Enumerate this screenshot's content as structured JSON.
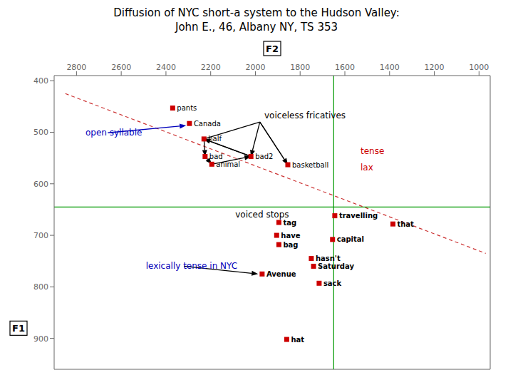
{
  "chart_data": {
    "type": "scatter",
    "title": "Diffusion of NYC short-a system to the Hudson Valley:\nJohn E., 46, Albany NY, TS 353",
    "x_label": "F2",
    "y_label": "F1",
    "xlim": [
      2900,
      950
    ],
    "ylim": [
      960,
      390
    ],
    "xticks": [
      2800,
      2600,
      2400,
      2200,
      2000,
      1800,
      1600,
      1400,
      1200,
      1000
    ],
    "yticks": [
      400,
      500,
      600,
      700,
      800,
      900
    ],
    "color": "#cc0000",
    "marker": "square",
    "points": [
      {
        "label": "pants",
        "x": 2370,
        "y": 453
      },
      {
        "label": "Canada",
        "x": 2295,
        "y": 483
      },
      {
        "label": "half",
        "x": 2230,
        "y": 513
      },
      {
        "label": "bad",
        "x": 2225,
        "y": 547
      },
      {
        "label": "animal",
        "x": 2195,
        "y": 562
      },
      {
        "label": "bad2",
        "x": 2020,
        "y": 547
      },
      {
        "label": "basketball",
        "x": 1855,
        "y": 563
      },
      {
        "label": "tag",
        "x": 1895,
        "y": 675
      },
      {
        "label": "travelling",
        "x": 1645,
        "y": 662
      },
      {
        "label": "that",
        "x": 1385,
        "y": 678
      },
      {
        "label": "have",
        "x": 1905,
        "y": 700
      },
      {
        "label": "capital",
        "x": 1655,
        "y": 708
      },
      {
        "label": "bag",
        "x": 1895,
        "y": 718
      },
      {
        "label": "hasn't",
        "x": 1750,
        "y": 745
      },
      {
        "label": "Saturday",
        "x": 1740,
        "y": 760
      },
      {
        "label": "Avenue",
        "x": 1970,
        "y": 775
      },
      {
        "label": "sack",
        "x": 1715,
        "y": 793
      },
      {
        "label": "hat",
        "x": 1860,
        "y": 902
      }
    ],
    "bold_labels": [
      "tag",
      "bag",
      "have",
      "capital",
      "hasn't",
      "Saturday",
      "Avenue",
      "sack",
      "hat",
      "travelling",
      "that"
    ],
    "reference_lines": [
      {
        "x": 1650,
        "color": "#009900"
      },
      {
        "y": 645,
        "color": "#009900"
      }
    ],
    "lines": [
      {
        "points": [
          [
            2850,
            425
          ],
          [
            970,
            735
          ]
        ],
        "color": "#cc3333",
        "line_style": "dashed"
      },
      {
        "points": [
          [
            2230,
            513
          ],
          [
            1980,
            480
          ],
          [
            1855,
            563
          ]
        ],
        "color": "#000000",
        "line_style": "solid"
      }
    ],
    "arrows": [
      {
        "from": [
          1980,
          480
        ],
        "to": [
          2020,
          547
        ],
        "color": "#000000"
      },
      {
        "from": [
          1980,
          480
        ],
        "to": [
          1855,
          563
        ],
        "color": "#000000"
      },
      {
        "from": [
          2020,
          547
        ],
        "to": [
          2230,
          513
        ],
        "color": "#000000"
      },
      {
        "from": [
          2230,
          513
        ],
        "to": [
          2225,
          547
        ],
        "color": "#000000"
      },
      {
        "from": [
          2225,
          547
        ],
        "to": [
          2195,
          562
        ],
        "color": "#000000"
      },
      {
        "from": [
          2195,
          562
        ],
        "to": [
          2020,
          547
        ],
        "color": "#000000"
      },
      {
        "from": [
          2020,
          547
        ],
        "to": [
          2230,
          513
        ],
        "color": "#000000"
      },
      {
        "from": [
          2660,
          501
        ],
        "to": [
          2310,
          487
        ],
        "color": "#0000bb"
      },
      {
        "from": [
          2320,
          760
        ],
        "to": [
          1988,
          775
        ],
        "color": "#000000"
      }
    ],
    "annotations": [
      {
        "text": "tense",
        "x": 1530,
        "y": 537,
        "color": "#cc0000"
      },
      {
        "text": "lax",
        "x": 1530,
        "y": 568,
        "color": "#cc0000"
      },
      {
        "text": "voiced stops",
        "x": 2090,
        "y": 660,
        "color": "#000000"
      },
      {
        "text": "voiceless fricatives",
        "x": 1960,
        "y": 468,
        "color": "#000000"
      },
      {
        "text": "open syllable",
        "x": 2760,
        "y": 501,
        "color": "#0000bb"
      },
      {
        "text": "lexically tense in NYC",
        "x": 2490,
        "y": 760,
        "color": "#0000bb"
      }
    ]
  }
}
